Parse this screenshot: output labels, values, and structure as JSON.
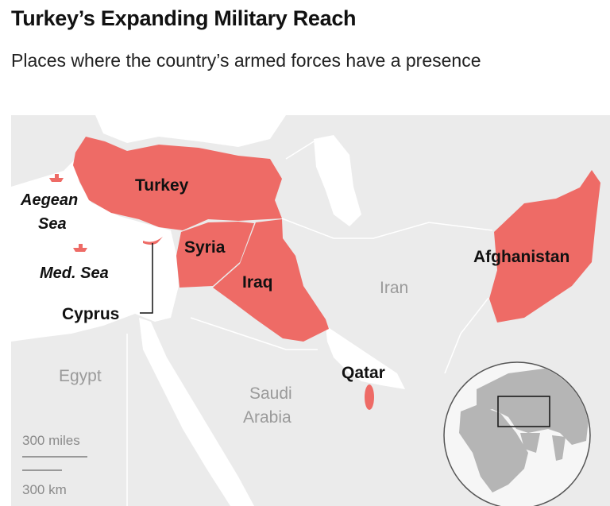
{
  "header": {
    "title": "Turkey’s Expanding Military Reach",
    "subtitle": "Places where the country’s armed forces have a presence"
  },
  "colors": {
    "highlight": "#ee6b66",
    "land": "#ebebeb",
    "water": "#ffffff",
    "border": "#ffffff",
    "label_dark": "#111111",
    "label_muted": "#9a9a9a"
  },
  "map": {
    "highlighted": [
      "Turkey",
      "Syria",
      "Iraq",
      "Afghanistan",
      "Qatar",
      "Cyprus"
    ],
    "labels": {
      "turkey": "Turkey",
      "syria": "Syria",
      "iraq": "Iraq",
      "afghanistan": "Afghanistan",
      "qatar": "Qatar",
      "cyprus": "Cyprus",
      "aegean_1": "Aegean",
      "aegean_2": "Sea",
      "med": "Med. Sea",
      "iran": "Iran",
      "egypt": "Egypt",
      "saudi_1": "Saudi",
      "saudi_2": "Arabia"
    },
    "icons": [
      "ship-icon",
      "ship-icon"
    ],
    "scale": {
      "miles": "300 miles",
      "km": "300 km"
    },
    "locator": "globe-locator"
  }
}
